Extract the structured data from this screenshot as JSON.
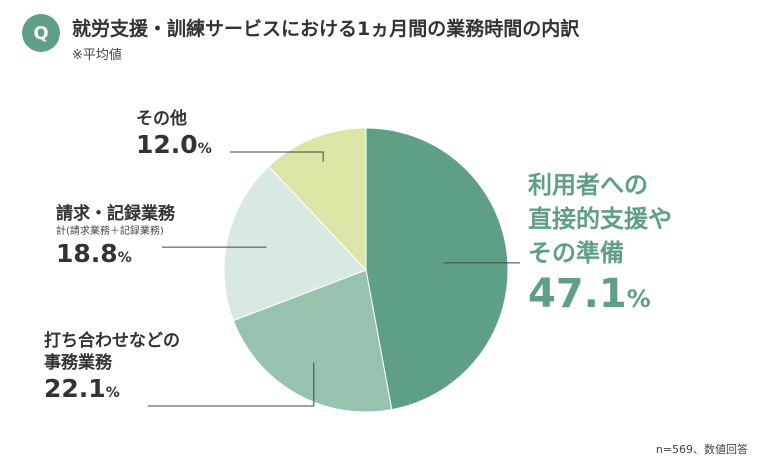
{
  "header": {
    "badge": "Q",
    "title": "就労支援・訓練サービスにおける1ヵ月間の業務時間の内訳",
    "subtitle": "※平均値"
  },
  "footnote": "n=569、数値回答",
  "chart_data": {
    "type": "pie",
    "unit": "%",
    "slices": [
      {
        "label_lines": [
          "利用者への",
          "直接的支援や",
          "その準備"
        ],
        "note": "",
        "value": 47.1,
        "value_text": "47.1",
        "color": "#5f9f85"
      },
      {
        "label_lines": [
          "打ち合わせなどの",
          "事務業務"
        ],
        "note": "",
        "value": 22.1,
        "value_text": "22.1",
        "color": "#97c2ae"
      },
      {
        "label_lines": [
          "請求・記録業務"
        ],
        "note": "計(請求業務＋記録業務)",
        "value": 18.8,
        "value_text": "18.8",
        "color": "#d8e9e1"
      },
      {
        "label_lines": [
          "その他"
        ],
        "note": "",
        "value": 12.0,
        "value_text": "12.0",
        "color": "#d9e6a6"
      }
    ]
  }
}
